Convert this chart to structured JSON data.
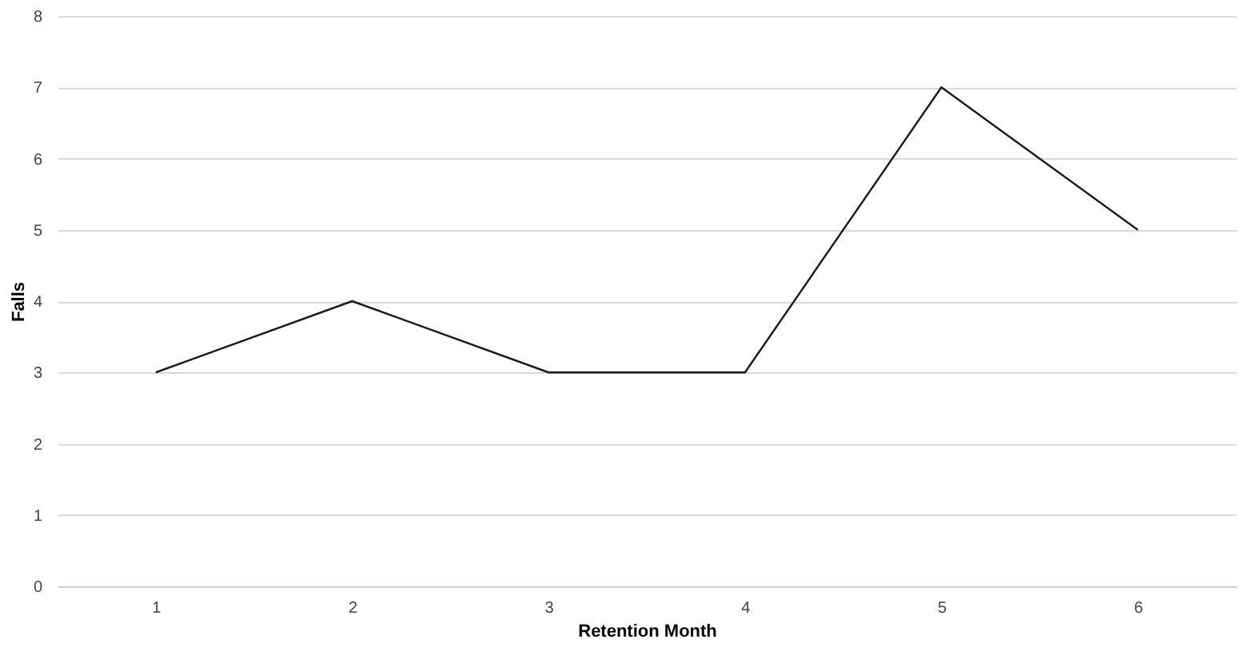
{
  "chart_data": {
    "type": "line",
    "xlabel": "Retention Month",
    "ylabel": "Falls",
    "categories": [
      "1",
      "2",
      "3",
      "4",
      "5",
      "6"
    ],
    "series": [
      {
        "color": "#1a1a1a",
        "values": [
          3,
          4,
          3,
          3,
          7,
          5
        ]
      }
    ],
    "ylim": [
      0,
      8
    ],
    "yticks": [
      0,
      1,
      2,
      3,
      4,
      5,
      6,
      7,
      8
    ],
    "grid": "y",
    "marker": "none",
    "line_style": "solid"
  }
}
